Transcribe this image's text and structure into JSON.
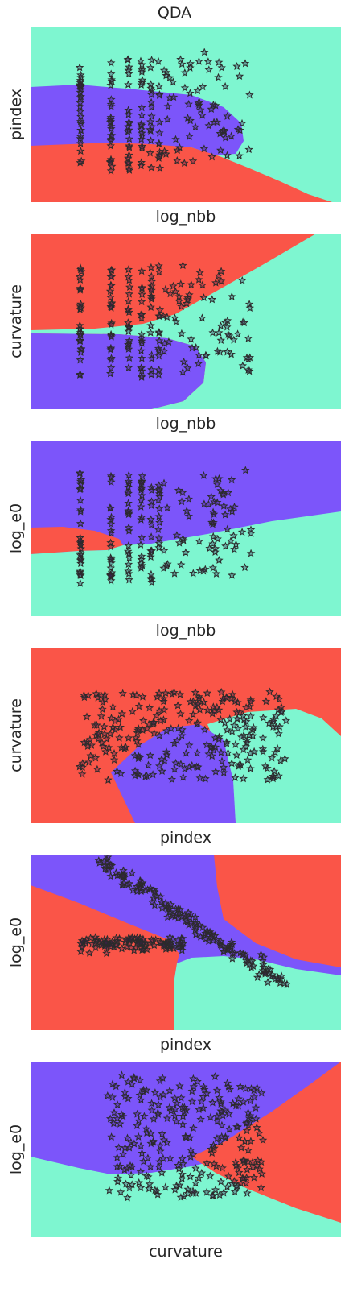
{
  "title": "QDA",
  "colors": {
    "red": "#fa5548",
    "purple": "#7c55fa",
    "mint": "#7ef6d0",
    "marker_edge": "#2b2b2b"
  },
  "chart_data": [
    {
      "type": "scatter",
      "xlabel": "log_nbb",
      "ylabel": "pindex",
      "regions": [
        "mint",
        "purple",
        "red"
      ],
      "pattern": "columns"
    },
    {
      "type": "scatter",
      "xlabel": "log_nbb",
      "ylabel": "curvature",
      "regions": [
        "red",
        "mint",
        "purple"
      ],
      "pattern": "columns"
    },
    {
      "type": "scatter",
      "xlabel": "log_nbb",
      "ylabel": "log_e0",
      "regions": [
        "purple",
        "red",
        "mint"
      ],
      "pattern": "columns"
    },
    {
      "type": "scatter",
      "xlabel": "pindex",
      "ylabel": "curvature",
      "regions": [
        "red",
        "mint",
        "purple"
      ],
      "pattern": "cloud"
    },
    {
      "type": "scatter",
      "xlabel": "pindex",
      "ylabel": "log_e0",
      "regions": [
        "purple",
        "red",
        "mint"
      ],
      "pattern": "diagonal"
    },
    {
      "type": "scatter",
      "xlabel": "curvature",
      "ylabel": "log_e0",
      "regions": [
        "purple",
        "mint",
        "red"
      ],
      "pattern": "blob"
    }
  ]
}
